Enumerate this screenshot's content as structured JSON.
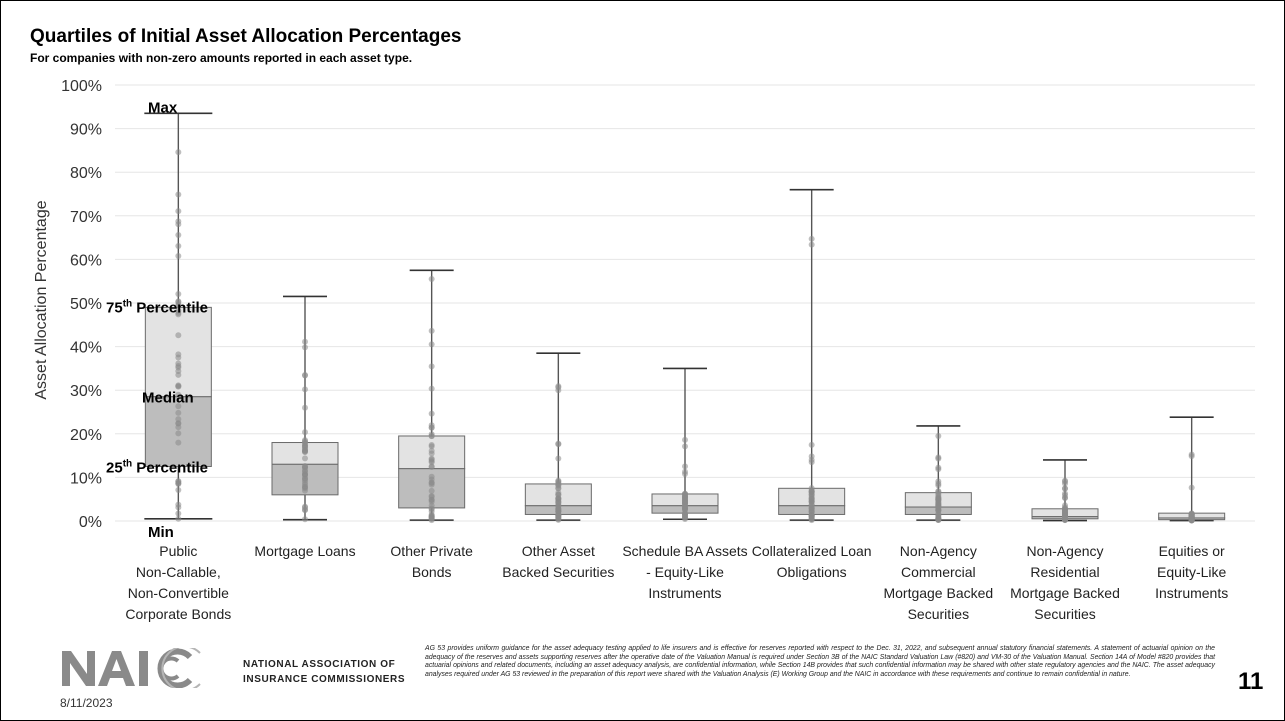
{
  "chart_data": {
    "type": "box",
    "title": "Quartiles of Initial Asset Allocation Percentages",
    "subtitle": "For companies with non-zero amounts reported in each asset type.",
    "ylabel": "Asset Allocation Percentage",
    "ylim": [
      0,
      100
    ],
    "yticks": [
      "0%",
      "10%",
      "20%",
      "30%",
      "40%",
      "50%",
      "60%",
      "70%",
      "80%",
      "90%",
      "100%"
    ],
    "grid": true,
    "categories": [
      [
        "Public",
        "Non-Callable,",
        "Non-Convertible",
        "Corporate Bonds"
      ],
      [
        "Mortgage Loans"
      ],
      [
        "Other Private",
        "Bonds"
      ],
      [
        "Other Asset",
        "Backed Securities"
      ],
      [
        "Schedule BA Assets",
        "- Equity-Like",
        "Instruments"
      ],
      [
        "Collateralized Loan",
        "Obligations"
      ],
      [
        "Non-Agency",
        "Commercial",
        "Mortgage Backed",
        "Securities"
      ],
      [
        "Non-Agency",
        "Residential",
        "Mortgage Backed",
        "Securities"
      ],
      [
        "Equities or",
        "Equity-Like",
        "Instruments"
      ]
    ],
    "boxes": [
      {
        "min": 0.5,
        "q1": 12.5,
        "median": 28.5,
        "q3": 49,
        "max": 93.5
      },
      {
        "min": 0.3,
        "q1": 6,
        "median": 13,
        "q3": 18,
        "max": 51.5
      },
      {
        "min": 0.2,
        "q1": 3,
        "median": 12,
        "q3": 19.5,
        "max": 57.5
      },
      {
        "min": 0.2,
        "q1": 1.5,
        "median": 3.5,
        "q3": 8.5,
        "max": 38.5
      },
      {
        "min": 0.4,
        "q1": 1.8,
        "median": 3.5,
        "q3": 6.2,
        "max": 35
      },
      {
        "min": 0.2,
        "q1": 1.5,
        "median": 3.5,
        "q3": 7.5,
        "max": 76
      },
      {
        "min": 0.2,
        "q1": 1.5,
        "median": 3.2,
        "q3": 6.5,
        "max": 21.8
      },
      {
        "min": 0.1,
        "q1": 0.5,
        "median": 1,
        "q3": 2.8,
        "max": 14
      },
      {
        "min": 0.1,
        "q1": 0.3,
        "median": 0.7,
        "q3": 1.8,
        "max": 23.8
      }
    ],
    "annotations": {
      "max": "Max",
      "q3": "75",
      "q3_sup": "th",
      "q3_rest": " Percentile",
      "median": "Median",
      "q1": "25",
      "q1_sup": "th",
      "q1_rest": " Percentile",
      "min": "Min"
    }
  },
  "colors": {
    "box_upper": "#e3e3e3",
    "box_lower": "#bdbdbd",
    "dots": "#8a8a8a",
    "whisker": "#555555",
    "grid": "#e6e6e6"
  },
  "footer": {
    "logo_text_line1": "NATIONAL ASSOCIATION OF",
    "logo_text_line2": "INSURANCE COMMISSIONERS",
    "date": "8/11/2023",
    "disclaimer": "AG 53 provides uniform guidance for the asset adequacy testing applied to life insurers and is effective for reserves reported with respect to the Dec. 31, 2022, and subsequent annual statutory financial statements. A statement of actuarial opinion on the adequacy of the reserves and assets supporting reserves after the operative date of the Valuation Manual is required under Section 3B of the NAIC Standard Valuation Law (#820) and VM-30 of the Valuation Manual. Section 14A of Model #820 provides that actuarial opinions and related documents, including an asset adequacy analysis, are confidential information, while Section 14B provides that such confidential information may be shared with other state regulatory agencies and the NAIC. The asset adequacy analyses required under AG 53 reviewed in the preparation of this report were shared with the Valuation Analysis (E) Working Group and the NAIC in accordance with these requirements and continue to remain confidential in nature.",
    "page_number": "11"
  }
}
